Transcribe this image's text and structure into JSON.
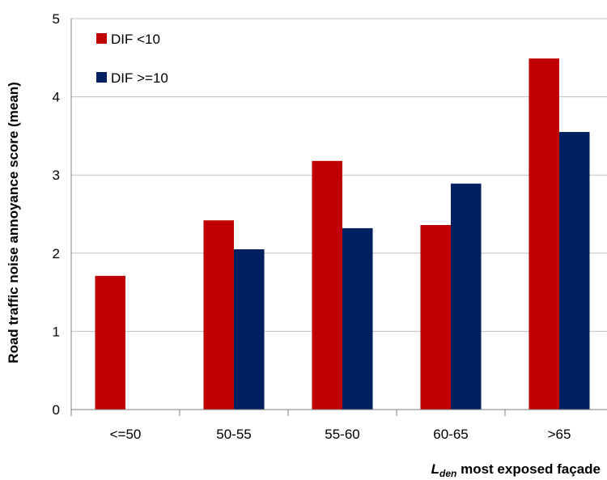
{
  "chart_data": {
    "type": "bar",
    "categories": [
      "<=50",
      "50-55",
      "55-60",
      "60-65",
      ">65"
    ],
    "series": [
      {
        "name": "DIF <10",
        "values": [
          1.71,
          2.42,
          3.18,
          2.36,
          4.49
        ],
        "color": "#C00000"
      },
      {
        "name": "DIF >=10",
        "values": [
          null,
          2.05,
          2.32,
          2.89,
          3.55
        ],
        "color": "#002060"
      }
    ],
    "ylabel": "Road traffic noise annoyance score (mean)",
    "xlabel_main": "L",
    "xlabel_sub": "den",
    "xlabel_rest": " most exposed façade",
    "ylim": [
      0,
      5
    ],
    "yticks": [
      "0",
      "1",
      "2",
      "3",
      "4",
      "5"
    ],
    "grid": true,
    "legend_position": "top-left",
    "grid_color": "#BFBFBF",
    "axis_color": "#808080"
  }
}
